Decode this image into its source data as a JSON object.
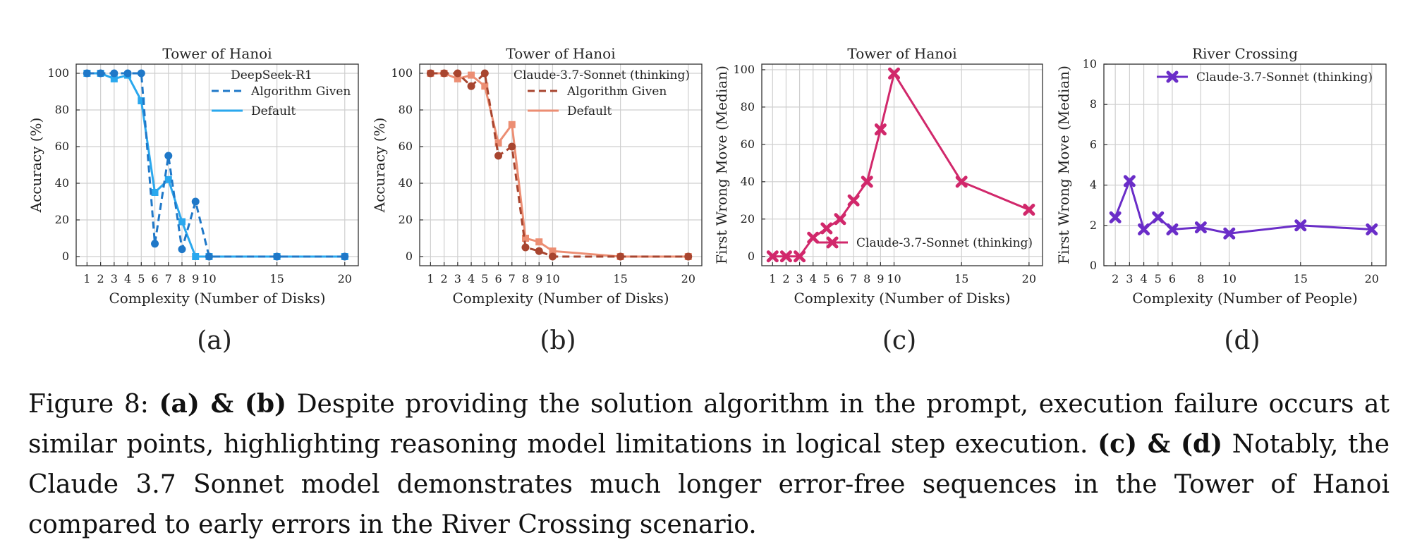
{
  "chart_data": [
    {
      "id": "a",
      "type": "line",
      "title": "Tower of Hanoi",
      "xlabel": "Complexity (Number of Disks)",
      "ylabel": "Accuracy (%)",
      "panel_label": "(a)",
      "xlim": [
        0.2,
        21
      ],
      "ylim": [
        -5,
        105
      ],
      "xticks": [
        1,
        2,
        3,
        4,
        5,
        6,
        7,
        8,
        9,
        10,
        15,
        20
      ],
      "yticks": [
        0,
        20,
        40,
        60,
        80,
        100
      ],
      "grid": true,
      "legend_title": "DeepSeek-R1",
      "legend_position": "top-right",
      "series": [
        {
          "name": "Algorithm Given",
          "style": "dashed",
          "marker": "circle",
          "color": "#1f78c8",
          "x": [
            1,
            2,
            3,
            4,
            5,
            6,
            7,
            8,
            9,
            10,
            15,
            20
          ],
          "y": [
            100,
            100,
            100,
            100,
            100,
            7,
            55,
            4,
            30,
            0,
            0,
            0
          ]
        },
        {
          "name": "Default",
          "style": "solid",
          "marker": "square",
          "color": "#2aa8ee",
          "x": [
            1,
            2,
            3,
            4,
            5,
            6,
            7,
            8,
            9,
            10,
            15,
            20
          ],
          "y": [
            100,
            100,
            97,
            99,
            85,
            35,
            42,
            19,
            0,
            0,
            0,
            0
          ]
        }
      ]
    },
    {
      "id": "b",
      "type": "line",
      "title": "Tower of Hanoi",
      "xlabel": "Complexity (Number of Disks)",
      "ylabel": "Accuracy (%)",
      "panel_label": "(b)",
      "xlim": [
        0.2,
        21
      ],
      "ylim": [
        -5,
        105
      ],
      "xticks": [
        1,
        2,
        3,
        4,
        5,
        6,
        7,
        8,
        9,
        10,
        15,
        20
      ],
      "yticks": [
        0,
        20,
        40,
        60,
        80,
        100
      ],
      "grid": true,
      "legend_title": "Claude-3.7-Sonnet (thinking)",
      "legend_position": "top-right",
      "series": [
        {
          "name": "Algorithm Given",
          "style": "dashed",
          "marker": "circle",
          "color": "#a8452f",
          "x": [
            1,
            2,
            3,
            4,
            5,
            6,
            7,
            8,
            9,
            10,
            15,
            20
          ],
          "y": [
            100,
            100,
            100,
            93,
            100,
            55,
            60,
            5,
            3,
            0,
            0,
            0
          ]
        },
        {
          "name": "Default",
          "style": "solid",
          "marker": "square",
          "color": "#ec8e73",
          "x": [
            1,
            2,
            3,
            4,
            5,
            6,
            7,
            8,
            9,
            10,
            15,
            20
          ],
          "y": [
            100,
            100,
            97,
            99,
            93,
            62,
            72,
            10,
            8,
            3,
            0,
            0
          ]
        }
      ]
    },
    {
      "id": "c",
      "type": "line",
      "title": "Tower of Hanoi",
      "xlabel": "Complexity (Number of Disks)",
      "ylabel": "First Wrong Move (Median)",
      "panel_label": "(c)",
      "xlim": [
        0.2,
        21
      ],
      "ylim": [
        -5,
        103
      ],
      "xticks": [
        1,
        2,
        3,
        4,
        5,
        6,
        7,
        8,
        9,
        10,
        15,
        20
      ],
      "yticks": [
        0,
        20,
        40,
        60,
        80,
        100
      ],
      "grid": true,
      "legend_title": "",
      "legend_position": "lower-right",
      "series": [
        {
          "name": "Claude-3.7-Sonnet (thinking)",
          "style": "solid",
          "marker": "x",
          "color": "#d1286b",
          "x": [
            1,
            2,
            3,
            4,
            5,
            6,
            7,
            8,
            9,
            10,
            15,
            20
          ],
          "y": [
            0,
            0,
            0,
            10,
            15,
            20,
            30,
            40,
            68,
            98,
            40,
            25
          ]
        }
      ]
    },
    {
      "id": "d",
      "type": "line",
      "title": "River Crossing",
      "xlabel": "Complexity (Number of People)",
      "ylabel": "First Wrong Move (Median)",
      "panel_label": "(d)",
      "xlim": [
        1.2,
        21
      ],
      "ylim": [
        0,
        10
      ],
      "xticks": [
        2,
        3,
        4,
        5,
        6,
        8,
        10,
        15,
        20
      ],
      "yticks": [
        0,
        2,
        4,
        6,
        8,
        10
      ],
      "grid": true,
      "legend_title": "",
      "legend_position": "top",
      "series": [
        {
          "name": "Claude-3.7-Sonnet (thinking)",
          "style": "solid",
          "marker": "x",
          "color": "#6a2dc8",
          "x": [
            2,
            3,
            4,
            5,
            6,
            8,
            10,
            15,
            20
          ],
          "y": [
            2.4,
            4.2,
            1.8,
            2.4,
            1.8,
            1.9,
            1.6,
            2.0,
            1.8
          ]
        }
      ]
    }
  ],
  "caption": {
    "figure_label": "Figure 8:",
    "bold_ab": "(a) & (b)",
    "text_ab": " Despite providing the solution algorithm in the prompt, execution failure occurs at similar points, highlighting reasoning model limitations in logical step execution. ",
    "bold_cd": "(c) & (d)",
    "text_cd": " Notably, the Claude 3.7 Sonnet model demonstrates much longer error-free sequences in the Tower of Hanoi compared to early errors in the River Crossing scenario."
  }
}
